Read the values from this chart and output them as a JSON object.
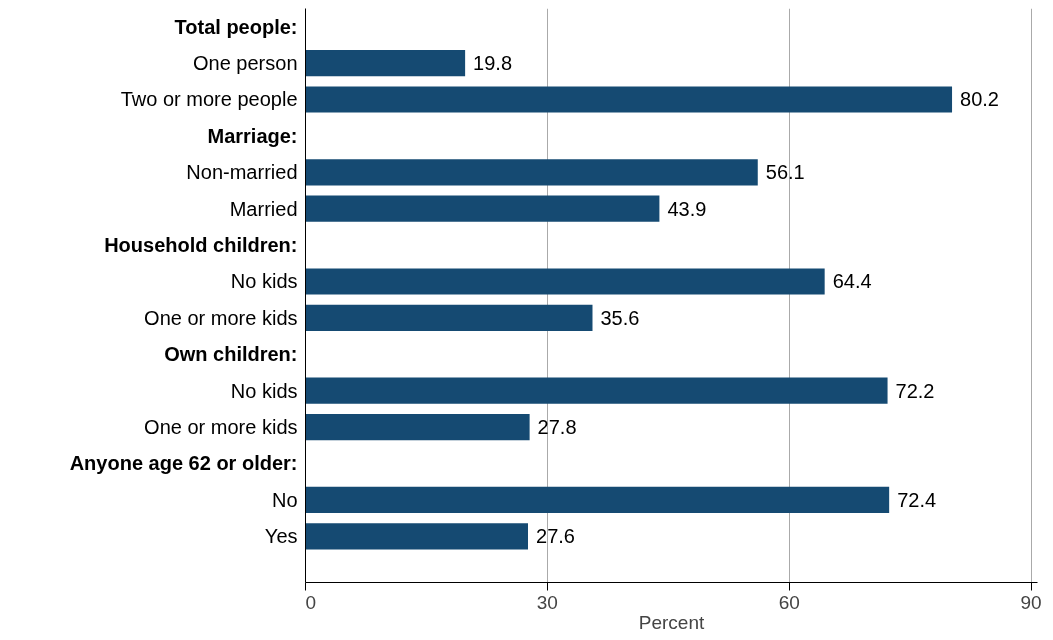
{
  "chart_data": {
    "type": "bar",
    "orientation": "horizontal",
    "xlabel": "Percent",
    "categories": [
      null,
      "One person",
      "Two or more people",
      null,
      "Non-married",
      "Married",
      null,
      "No kids",
      "One or more kids",
      null,
      "No kids",
      "One or more kids",
      null,
      "No",
      "Yes"
    ],
    "annotations": [
      "Total people:",
      "Marriage:",
      "Household children:",
      "Own children:",
      "Anyone age 62 or older:"
    ],
    "values": [
      null,
      19.8,
      80.2,
      null,
      56.1,
      43.9,
      null,
      64.4,
      35.6,
      null,
      72.2,
      27.8,
      null,
      72.4,
      27.6
    ],
    "color": "#154a72",
    "xlim": [
      0,
      90.8
    ],
    "xticks": [
      0,
      30,
      60,
      90
    ],
    "grid": "x",
    "data_labels": true
  }
}
